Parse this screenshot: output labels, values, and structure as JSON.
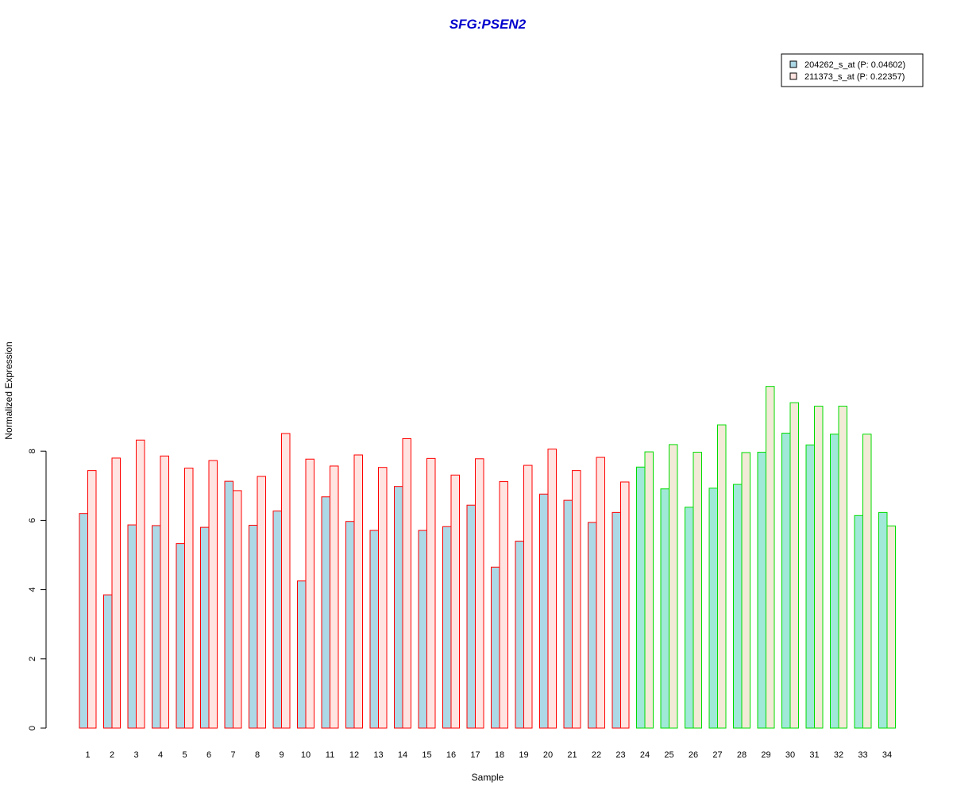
{
  "chart_data": {
    "type": "bar",
    "title": "SFG:PSEN2",
    "xlabel": "Sample",
    "ylabel": "Normalized Expression",
    "ylim": [
      0,
      10
    ],
    "yticks": [
      0,
      2,
      4,
      6,
      8
    ],
    "categories": [
      "1",
      "2",
      "3",
      "4",
      "5",
      "6",
      "7",
      "8",
      "9",
      "10",
      "11",
      "12",
      "13",
      "14",
      "15",
      "16",
      "17",
      "18",
      "19",
      "20",
      "21",
      "22",
      "23",
      "24",
      "25",
      "26",
      "27",
      "28",
      "29",
      "30",
      "31",
      "32",
      "33",
      "34"
    ],
    "group_split_after": 23,
    "series": [
      {
        "name": "204262_s_at (P: 0.04602)",
        "values": [
          6.2,
          3.85,
          5.87,
          5.85,
          5.33,
          5.8,
          7.13,
          5.86,
          6.27,
          4.25,
          6.68,
          5.97,
          5.71,
          6.98,
          5.71,
          5.82,
          6.44,
          4.65,
          5.4,
          6.76,
          6.58,
          5.94,
          6.23,
          7.54,
          6.91,
          6.38,
          6.93,
          7.04,
          7.97,
          8.52,
          8.18,
          8.49,
          6.14,
          6.23
        ]
      },
      {
        "name": "211373_s_at (P: 0.22357)",
        "values": [
          7.44,
          7.8,
          8.32,
          7.86,
          7.51,
          7.73,
          6.86,
          7.27,
          8.51,
          7.77,
          7.57,
          7.89,
          7.53,
          8.36,
          7.79,
          7.31,
          7.78,
          7.12,
          7.59,
          8.06,
          7.44,
          7.82,
          7.11,
          7.98,
          8.19,
          7.97,
          8.76,
          7.96,
          9.87,
          9.4,
          9.3,
          9.3,
          8.49,
          5.84
        ]
      }
    ],
    "colors": {
      "group1_fill_a": "#add8e6",
      "group1_fill_b": "#ffe4e1",
      "group1_border": "#ff0000",
      "group2_fill_a": "#a0e8d8",
      "group2_fill_b": "#f2ead6",
      "group2_border": "#00dd00",
      "title": "#0000cd"
    },
    "legend_position": "top-right",
    "grid": false
  }
}
